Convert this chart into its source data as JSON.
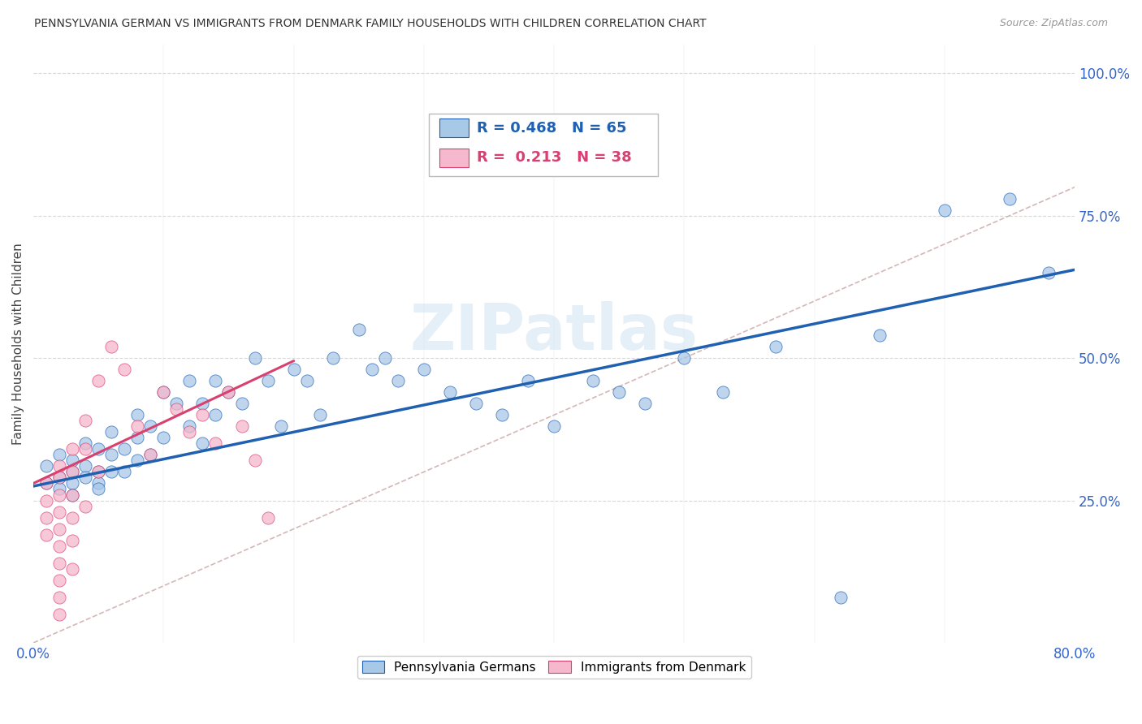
{
  "title": "PENNSYLVANIA GERMAN VS IMMIGRANTS FROM DENMARK FAMILY HOUSEHOLDS WITH CHILDREN CORRELATION CHART",
  "source": "Source: ZipAtlas.com",
  "ylabel": "Family Households with Children",
  "xlim": [
    0.0,
    0.8
  ],
  "ylim": [
    0.0,
    1.05
  ],
  "y_tick_positions": [
    0.25,
    0.5,
    0.75,
    1.0
  ],
  "y_tick_labels": [
    "25.0%",
    "50.0%",
    "75.0%",
    "100.0%"
  ],
  "r_blue": 0.468,
  "n_blue": 65,
  "r_pink": 0.213,
  "n_pink": 38,
  "blue_color": "#a8c8e8",
  "pink_color": "#f5b8cc",
  "blue_line_color": "#2060b0",
  "pink_line_color": "#d84070",
  "ref_line_color": "#d0b0b0",
  "grid_color": "#d8d8d8",
  "watermark": "ZIPatlas",
  "blue_scatter_x": [
    0.01,
    0.01,
    0.02,
    0.02,
    0.02,
    0.03,
    0.03,
    0.03,
    0.03,
    0.04,
    0.04,
    0.04,
    0.05,
    0.05,
    0.05,
    0.05,
    0.06,
    0.06,
    0.06,
    0.07,
    0.07,
    0.08,
    0.08,
    0.08,
    0.09,
    0.09,
    0.1,
    0.1,
    0.11,
    0.12,
    0.12,
    0.13,
    0.13,
    0.14,
    0.14,
    0.15,
    0.16,
    0.17,
    0.18,
    0.19,
    0.2,
    0.21,
    0.22,
    0.23,
    0.25,
    0.26,
    0.27,
    0.28,
    0.3,
    0.32,
    0.34,
    0.36,
    0.38,
    0.4,
    0.43,
    0.45,
    0.47,
    0.5,
    0.53,
    0.57,
    0.62,
    0.65,
    0.7,
    0.75,
    0.78
  ],
  "blue_scatter_y": [
    0.31,
    0.28,
    0.29,
    0.27,
    0.33,
    0.3,
    0.28,
    0.32,
    0.26,
    0.31,
    0.29,
    0.35,
    0.3,
    0.28,
    0.34,
    0.27,
    0.33,
    0.3,
    0.37,
    0.34,
    0.3,
    0.36,
    0.32,
    0.4,
    0.38,
    0.33,
    0.44,
    0.36,
    0.42,
    0.46,
    0.38,
    0.42,
    0.35,
    0.4,
    0.46,
    0.44,
    0.42,
    0.5,
    0.46,
    0.38,
    0.48,
    0.46,
    0.4,
    0.5,
    0.55,
    0.48,
    0.5,
    0.46,
    0.48,
    0.44,
    0.42,
    0.4,
    0.46,
    0.38,
    0.46,
    0.44,
    0.42,
    0.5,
    0.44,
    0.52,
    0.08,
    0.54,
    0.76,
    0.78,
    0.65
  ],
  "pink_scatter_x": [
    0.01,
    0.01,
    0.01,
    0.01,
    0.02,
    0.02,
    0.02,
    0.02,
    0.02,
    0.02,
    0.02,
    0.02,
    0.02,
    0.02,
    0.03,
    0.03,
    0.03,
    0.03,
    0.03,
    0.03,
    0.04,
    0.04,
    0.04,
    0.05,
    0.05,
    0.06,
    0.07,
    0.08,
    0.09,
    0.1,
    0.11,
    0.12,
    0.13,
    0.14,
    0.15,
    0.16,
    0.17,
    0.18
  ],
  "pink_scatter_y": [
    0.28,
    0.25,
    0.22,
    0.19,
    0.31,
    0.29,
    0.26,
    0.23,
    0.2,
    0.17,
    0.14,
    0.11,
    0.08,
    0.05,
    0.34,
    0.3,
    0.26,
    0.22,
    0.18,
    0.13,
    0.39,
    0.34,
    0.24,
    0.46,
    0.3,
    0.52,
    0.48,
    0.38,
    0.33,
    0.44,
    0.41,
    0.37,
    0.4,
    0.35,
    0.44,
    0.38,
    0.32,
    0.22
  ],
  "blue_trend_x0": 0.0,
  "blue_trend_y0": 0.275,
  "blue_trend_x1": 0.8,
  "blue_trend_y1": 0.655,
  "pink_trend_x0": 0.0,
  "pink_trend_y0": 0.28,
  "pink_trend_x1": 0.2,
  "pink_trend_y1": 0.495
}
